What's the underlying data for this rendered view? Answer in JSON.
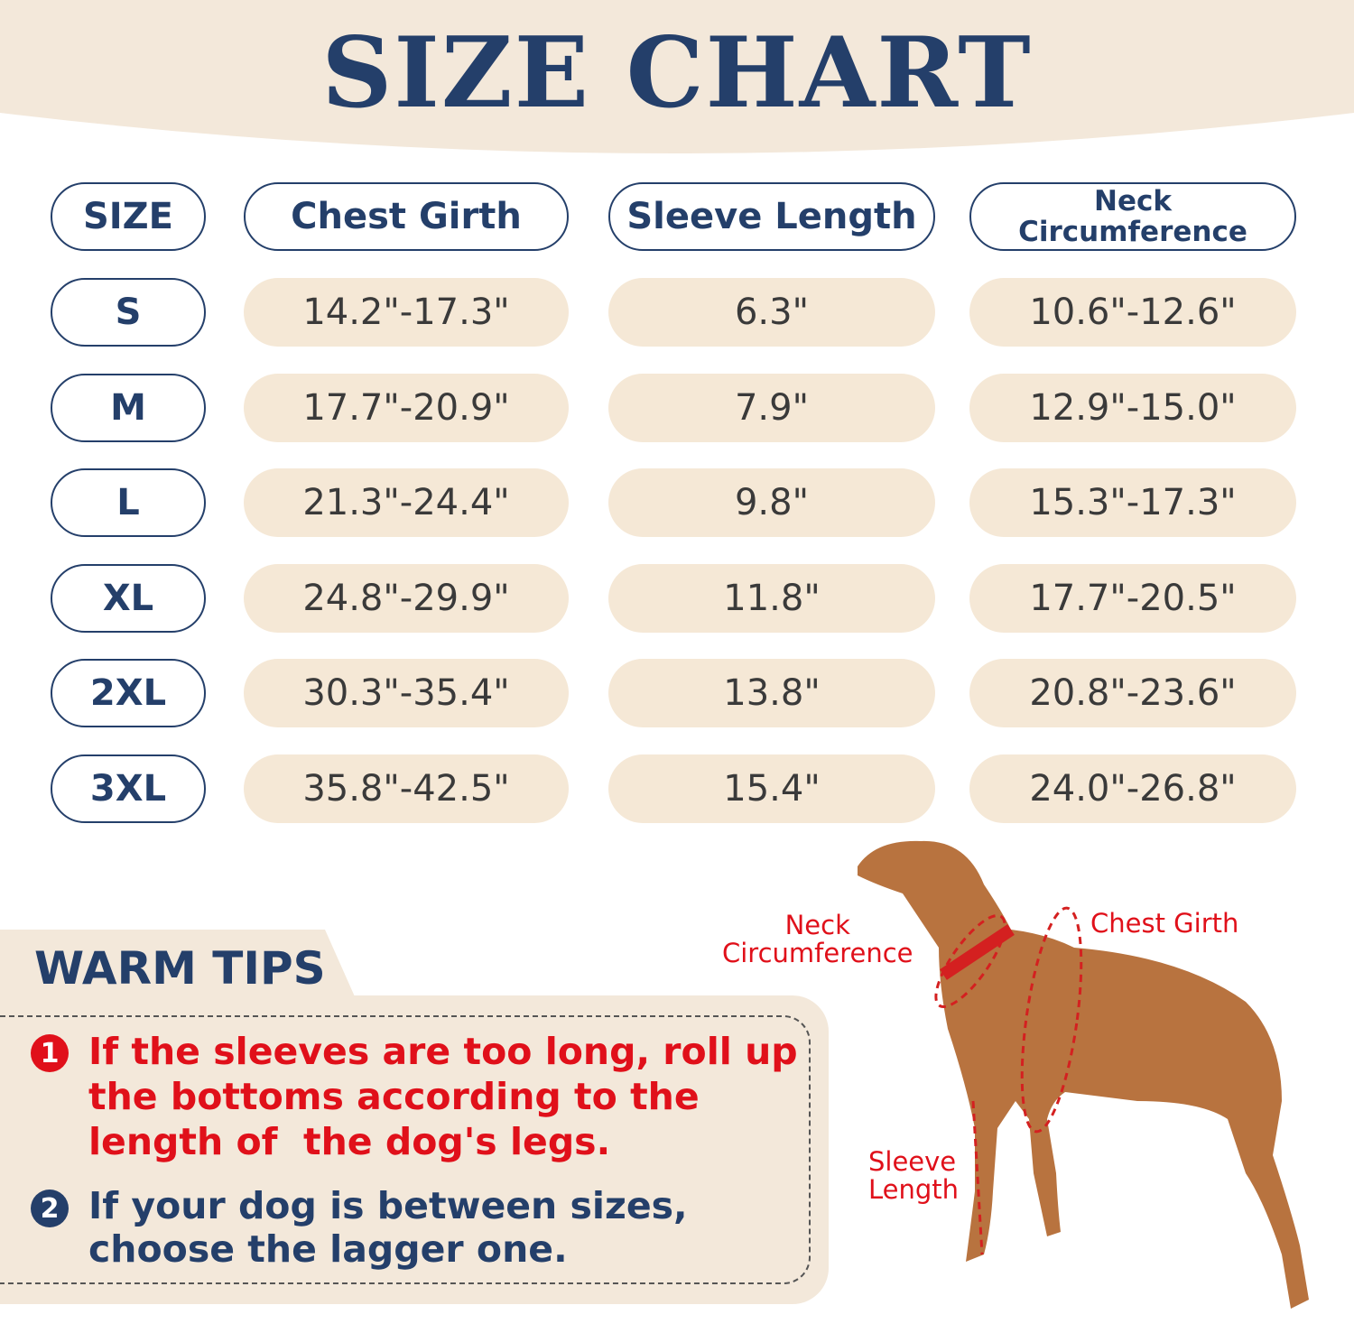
{
  "title": "SIZE CHART",
  "colors": {
    "navy": "#243f6a",
    "beige": "#f5e8d6",
    "red": "#e0101a"
  },
  "table": {
    "columns": [
      "SIZE",
      "Chest Girth",
      "Sleeve Length",
      "Neck Circumference"
    ],
    "rows": [
      {
        "size": "S",
        "chest": "14.2\"-17.3\"",
        "sleeve": "6.3\"",
        "neck": "10.6\"-12.6\""
      },
      {
        "size": "M",
        "chest": "17.7\"-20.9\"",
        "sleeve": "7.9\"",
        "neck": "12.9\"-15.0\""
      },
      {
        "size": "L",
        "chest": "21.3\"-24.4\"",
        "sleeve": "9.8\"",
        "neck": "15.3\"-17.3\""
      },
      {
        "size": "XL",
        "chest": "24.8\"-29.9\"",
        "sleeve": "11.8\"",
        "neck": "17.7\"-20.5\""
      },
      {
        "size": "2XL",
        "chest": "30.3\"-35.4\"",
        "sleeve": "13.8\"",
        "neck": "20.8\"-23.6\""
      },
      {
        "size": "3XL",
        "chest": "35.8\"-42.5\"",
        "sleeve": "15.4\"",
        "neck": "24.0\"-26.8\""
      }
    ]
  },
  "tips": {
    "title": "WARM TIPS",
    "items": [
      {
        "number": "1",
        "lines": [
          "If the sleeves are too long, roll up",
          "the bottoms according to the",
          "length of  the dog's legs."
        ]
      },
      {
        "number": "2",
        "lines": [
          "If your dog is between sizes,",
          "choose the lagger one."
        ]
      }
    ]
  },
  "diagram": {
    "neck_label": [
      "Neck",
      "Circumference"
    ],
    "chest_label": "Chest Girth",
    "sleeve_label": [
      "Sleeve",
      "Length"
    ]
  }
}
